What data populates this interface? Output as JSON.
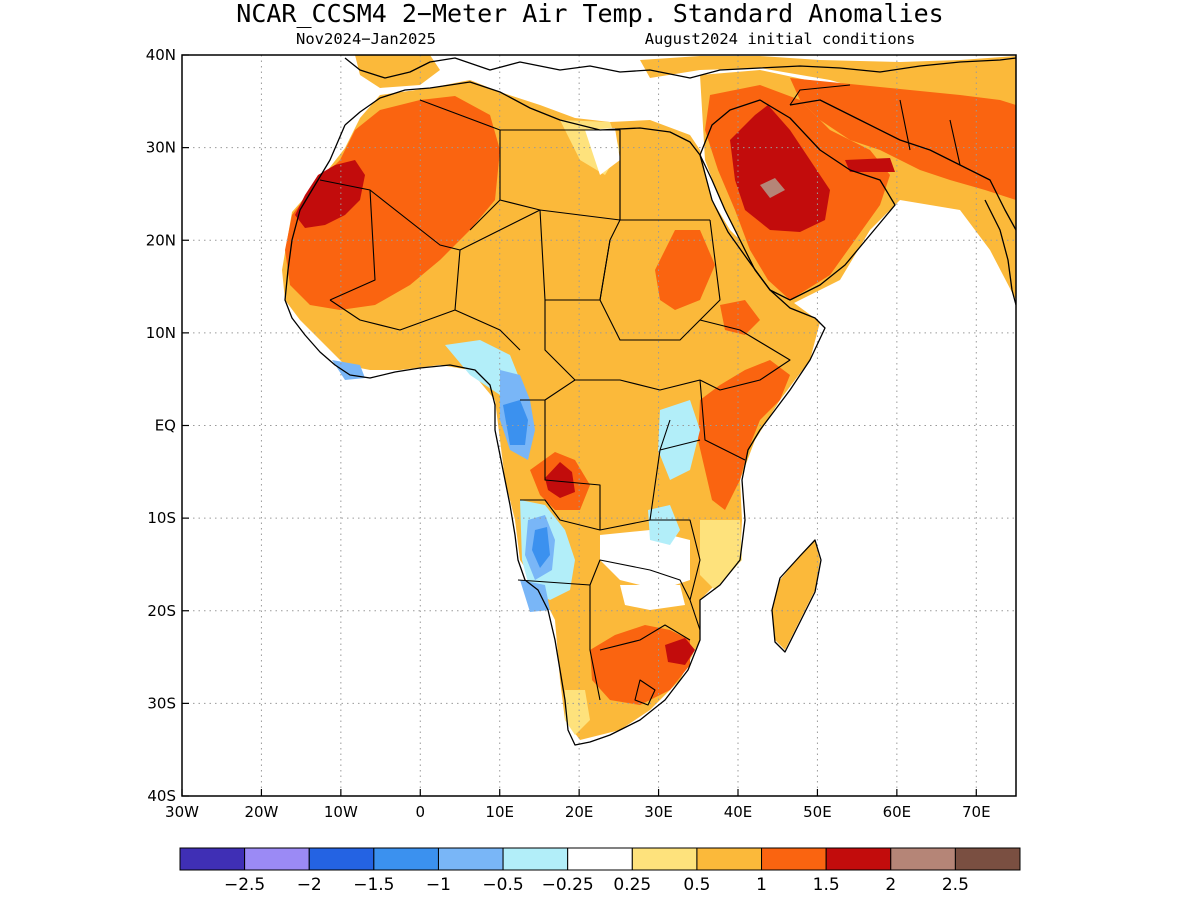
{
  "title": "NCAR_CCSM4 2−Meter Air Temp. Standard Anomalies",
  "period": "Nov2024−Jan2025",
  "init": "August2024 initial conditions",
  "map": {
    "lon_range": [
      -30,
      75
    ],
    "lat_range": [
      -40,
      40
    ],
    "lon_ticks": [
      {
        "v": -30,
        "label": "30W"
      },
      {
        "v": -20,
        "label": "20W"
      },
      {
        "v": -10,
        "label": "10W"
      },
      {
        "v": 0,
        "label": "0"
      },
      {
        "v": 10,
        "label": "10E"
      },
      {
        "v": 20,
        "label": "20E"
      },
      {
        "v": 30,
        "label": "30E"
      },
      {
        "v": 40,
        "label": "40E"
      },
      {
        "v": 50,
        "label": "50E"
      },
      {
        "v": 60,
        "label": "60E"
      },
      {
        "v": 70,
        "label": "70E"
      }
    ],
    "lat_ticks": [
      {
        "v": 40,
        "label": "40N"
      },
      {
        "v": 30,
        "label": "30N"
      },
      {
        "v": 20,
        "label": "20N"
      },
      {
        "v": 10,
        "label": "10N"
      },
      {
        "v": 0,
        "label": "EQ"
      },
      {
        "v": -10,
        "label": "10S"
      },
      {
        "v": -20,
        "label": "20S"
      },
      {
        "v": -30,
        "label": "30S"
      },
      {
        "v": -40,
        "label": "40S"
      }
    ],
    "grid": true
  },
  "colorbar": {
    "colors": [
      "#3f2fb5",
      "#9b8af5",
      "#2463e3",
      "#3b91ef",
      "#79b6f7",
      "#b2eef9",
      "#ffffff",
      "#fee27c",
      "#fbb93a",
      "#fa6410",
      "#c20c0c",
      "#b58577",
      "#7a4f41"
    ],
    "labels": [
      "−2.5",
      "−2",
      "−1.5",
      "−1",
      "−0.5",
      "−0.25",
      "0.25",
      "0.5",
      "1",
      "1.5",
      "2",
      "2.5"
    ]
  }
}
